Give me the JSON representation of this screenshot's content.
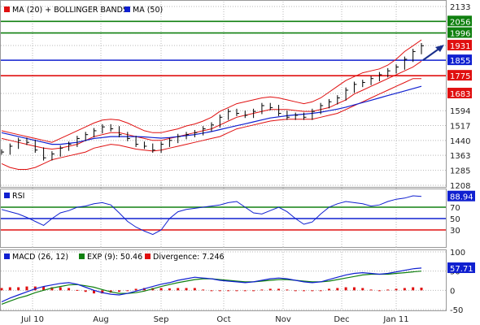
{
  "chart_data": [
    {
      "type": "candlestick",
      "panel": "price",
      "legend": [
        {
          "label": "MA (20) + BOLLINGER BANDS",
          "color": "#e01010"
        },
        {
          "label": "MA (50)",
          "color": "#1020d0"
        }
      ],
      "y_ticks": [
        "2133",
        "1996",
        "1931",
        "1855",
        "1775",
        "1683",
        "1594",
        "1517",
        "1440",
        "1363",
        "1285",
        "1208"
      ],
      "ylim": [
        1208,
        2133
      ],
      "price_tags": [
        {
          "value": "2056",
          "color": "#108010"
        },
        {
          "value": "1996",
          "color": "#108010"
        },
        {
          "value": "1931",
          "color": "#e01010"
        },
        {
          "value": "1855",
          "color": "#1020d0"
        },
        {
          "value": "1775",
          "color": "#e01010"
        },
        {
          "value": "1683",
          "color": "#e01010"
        }
      ],
      "horizontal_lines": [
        {
          "value": 2056,
          "color": "#108010"
        },
        {
          "value": 1996,
          "color": "#108010"
        },
        {
          "value": 1855,
          "color": "#1020d0"
        },
        {
          "value": 1775,
          "color": "#e01010"
        }
      ],
      "close_series": [
        1380,
        1410,
        1440,
        1430,
        1390,
        1350,
        1370,
        1400,
        1420,
        1450,
        1470,
        1490,
        1510,
        1500,
        1470,
        1450,
        1420,
        1410,
        1390,
        1420,
        1440,
        1460,
        1470,
        1480,
        1500,
        1520,
        1560,
        1590,
        1580,
        1570,
        1590,
        1620,
        1610,
        1580,
        1560,
        1570,
        1560,
        1590,
        1620,
        1640,
        1660,
        1700,
        1730,
        1740,
        1760,
        1780,
        1800,
        1820,
        1860,
        1900,
        1930
      ],
      "ma20": [
        1450,
        1440,
        1430,
        1420,
        1410,
        1400,
        1395,
        1400,
        1410,
        1420,
        1440,
        1460,
        1470,
        1480,
        1480,
        1470,
        1460,
        1450,
        1440,
        1440,
        1450,
        1460,
        1470,
        1480,
        1490,
        1500,
        1520,
        1540,
        1560,
        1570,
        1580,
        1590,
        1600,
        1600,
        1600,
        1595,
        1590,
        1590,
        1600,
        1610,
        1630,
        1650,
        1680,
        1700,
        1720,
        1740,
        1760,
        1780,
        1800,
        1820,
        1850
      ],
      "upper_band": [
        1490,
        1480,
        1470,
        1460,
        1450,
        1440,
        1430,
        1450,
        1470,
        1490,
        1510,
        1530,
        1545,
        1550,
        1545,
        1530,
        1510,
        1490,
        1480,
        1480,
        1490,
        1500,
        1515,
        1525,
        1540,
        1560,
        1590,
        1610,
        1630,
        1640,
        1650,
        1660,
        1665,
        1660,
        1650,
        1640,
        1630,
        1640,
        1660,
        1690,
        1720,
        1750,
        1770,
        1790,
        1800,
        1810,
        1830,
        1860,
        1900,
        1930,
        1960
      ],
      "lower_band": [
        1320,
        1300,
        1290,
        1290,
        1300,
        1320,
        1340,
        1350,
        1360,
        1370,
        1380,
        1400,
        1410,
        1420,
        1415,
        1405,
        1395,
        1390,
        1385,
        1390,
        1400,
        1410,
        1420,
        1430,
        1440,
        1450,
        1460,
        1480,
        1500,
        1510,
        1520,
        1530,
        1540,
        1545,
        1550,
        1550,
        1550,
        1550,
        1560,
        1570,
        1580,
        1600,
        1620,
        1640,
        1660,
        1680,
        1700,
        1720,
        1740,
        1760,
        1760
      ],
      "ma50": [
        1480,
        1470,
        1460,
        1450,
        1440,
        1430,
        1420,
        1420,
        1425,
        1430,
        1440,
        1450,
        1455,
        1460,
        1460,
        1460,
        1460,
        1458,
        1455,
        1452,
        1455,
        1460,
        1465,
        1470,
        1478,
        1486,
        1496,
        1506,
        1516,
        1526,
        1536,
        1546,
        1556,
        1562,
        1568,
        1572,
        1576,
        1580,
        1586,
        1594,
        1602,
        1612,
        1624,
        1636,
        1648,
        1660,
        1672,
        1684,
        1696,
        1708,
        1720
      ]
    },
    {
      "type": "line",
      "panel": "rsi",
      "legend": [
        {
          "label": "RSI",
          "color": "#1020d0"
        }
      ],
      "y_ticks": [
        "70",
        "50",
        "30"
      ],
      "ylim": [
        0,
        100
      ],
      "last_value": "88.94",
      "levels": [
        {
          "value": 70,
          "color": "#108010"
        },
        {
          "value": 50,
          "color": "#1020d0"
        },
        {
          "value": 30,
          "color": "#e01010"
        }
      ],
      "values": [
        66,
        62,
        58,
        52,
        45,
        38,
        50,
        60,
        64,
        70,
        72,
        76,
        78,
        74,
        60,
        45,
        35,
        28,
        22,
        30,
        50,
        62,
        66,
        68,
        70,
        72,
        74,
        78,
        80,
        70,
        60,
        58,
        64,
        70,
        62,
        50,
        40,
        44,
        58,
        70,
        76,
        80,
        78,
        76,
        72,
        74,
        80,
        84,
        86,
        90,
        89
      ]
    },
    {
      "type": "line",
      "panel": "macd",
      "legend": [
        {
          "label": "MACD (26, 12)",
          "color": "#1020d0"
        },
        {
          "label": "EXP (9): 50.46",
          "color": "#108010"
        },
        {
          "label": "Divergence: 7.246",
          "color": "#e01010"
        }
      ],
      "y_ticks": [
        "100",
        "57.71",
        "50",
        "0",
        "-50"
      ],
      "ylim": [
        -50,
        100
      ],
      "last_value": "57.71",
      "macd": [
        -30,
        -20,
        -12,
        -4,
        4,
        10,
        14,
        18,
        20,
        16,
        8,
        0,
        -6,
        -10,
        -12,
        -8,
        -2,
        4,
        10,
        16,
        20,
        26,
        30,
        34,
        32,
        30,
        26,
        24,
        22,
        20,
        22,
        26,
        30,
        32,
        30,
        26,
        22,
        20,
        22,
        28,
        34,
        40,
        44,
        46,
        44,
        42,
        44,
        48,
        52,
        56,
        58
      ],
      "signal": [
        -36,
        -28,
        -20,
        -14,
        -6,
        0,
        6,
        10,
        14,
        15,
        12,
        8,
        2,
        -4,
        -8,
        -8,
        -6,
        -2,
        4,
        10,
        15,
        20,
        24,
        28,
        30,
        30,
        28,
        26,
        24,
        22,
        22,
        24,
        26,
        28,
        28,
        26,
        24,
        22,
        22,
        24,
        28,
        32,
        36,
        40,
        42,
        42,
        42,
        44,
        46,
        48,
        50
      ],
      "divergence": [
        6,
        8,
        8,
        10,
        10,
        10,
        8,
        8,
        6,
        1,
        -4,
        -8,
        -8,
        -6,
        -4,
        0,
        4,
        6,
        6,
        6,
        5,
        6,
        6,
        6,
        2,
        0,
        -2,
        -2,
        -2,
        -2,
        0,
        2,
        4,
        4,
        2,
        0,
        -2,
        -2,
        0,
        4,
        6,
        8,
        8,
        6,
        2,
        0,
        2,
        4,
        6,
        8,
        7
      ]
    }
  ],
  "x_axis": {
    "labels": [
      "Jul 10",
      "Aug",
      "Sep",
      "Oct",
      "Nov",
      "Dec",
      "Jan 11"
    ]
  },
  "colors": {
    "grid": "#b8b8b8",
    "candle": "#000000",
    "axis": "#666666"
  }
}
